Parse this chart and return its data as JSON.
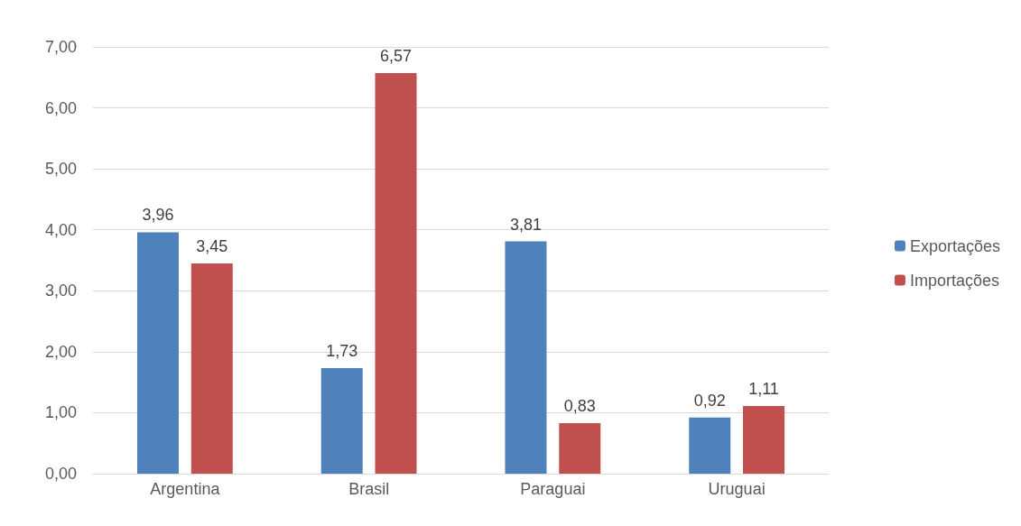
{
  "chart_data": {
    "type": "bar",
    "categories": [
      "Argentina",
      "Brasil",
      "Paraguai",
      "Uruguai"
    ],
    "series": [
      {
        "name": "Exportações",
        "color": "#4f81bd",
        "values": [
          3.96,
          1.73,
          3.81,
          0.92
        ],
        "value_labels": [
          "3,96",
          "1,73",
          "3,81",
          "0,92"
        ]
      },
      {
        "name": "Importações",
        "color": "#c0504d",
        "values": [
          3.45,
          6.57,
          0.83,
          1.11
        ],
        "value_labels": [
          "3,45",
          "6,57",
          "0,83",
          "1,11"
        ]
      }
    ],
    "ylim": [
      0,
      7
    ],
    "yticks": [
      {
        "value": 0,
        "label": "0,00"
      },
      {
        "value": 1,
        "label": "1,00"
      },
      {
        "value": 2,
        "label": "2,00"
      },
      {
        "value": 3,
        "label": "3,00"
      },
      {
        "value": 4,
        "label": "4,00"
      },
      {
        "value": 5,
        "label": "5,00"
      },
      {
        "value": 6,
        "label": "6,00"
      },
      {
        "value": 7,
        "label": "7,00"
      }
    ],
    "grid": "y",
    "legend": "right"
  }
}
